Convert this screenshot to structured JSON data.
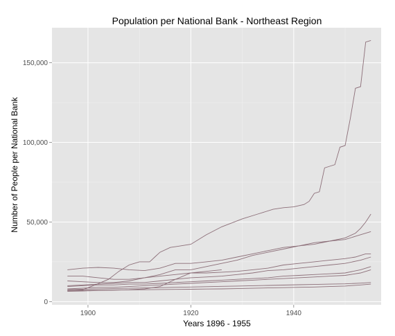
{
  "chart_data": {
    "type": "line",
    "title": "Population per National Bank - Northeast Region",
    "xlabel": "Years 1896 - 1955",
    "ylabel": "Number of People per National Bank",
    "xlim": [
      1893,
      1957
    ],
    "ylim": [
      -2000,
      172000
    ],
    "x_ticks": [
      1900,
      1920,
      1940
    ],
    "x_tick_labels": [
      "1900",
      "1920",
      "1940"
    ],
    "y_ticks": [
      0,
      50000,
      100000,
      150000
    ],
    "y_tick_labels": [
      "0",
      "50,000",
      "100,000",
      "150,000"
    ],
    "grid": true,
    "legend": "none",
    "panel_background": "#e5e5e5",
    "grid_color": "#ffffff",
    "line_color": "#8c6e78",
    "series": [
      {
        "x": [
          1896,
          1899,
          1901,
          1904,
          1906,
          1908,
          1910,
          1912,
          1913,
          1914,
          1916,
          1917,
          1918,
          1920,
          1923,
          1926,
          1930,
          1933,
          1936,
          1938,
          1940,
          1942,
          1943,
          1944,
          1945,
          1946,
          1947,
          1948,
          1949,
          1950,
          1951,
          1952,
          1953,
          1954,
          1955
        ],
        "values": [
          7000,
          7500,
          10000,
          14000,
          19000,
          23000,
          25000,
          25000,
          28000,
          31000,
          34000,
          34500,
          35000,
          36000,
          42000,
          47000,
          52000,
          55000,
          58000,
          59000,
          59500,
          61000,
          63000,
          68000,
          69000,
          84000,
          85000,
          86000,
          97000,
          98000,
          115000,
          134000,
          135000,
          163000,
          164000
        ]
      },
      {
        "x": [
          1896,
          1899,
          1902,
          1905,
          1908,
          1911,
          1914,
          1917,
          1920,
          1923,
          1926,
          1929,
          1932,
          1935,
          1938,
          1941,
          1944,
          1947,
          1950,
          1952,
          1953,
          1954,
          1955
        ],
        "values": [
          20000,
          21000,
          21500,
          21000,
          20000,
          19500,
          21000,
          24000,
          24000,
          25000,
          26000,
          28000,
          30000,
          32000,
          34000,
          35000,
          36000,
          38000,
          40000,
          43000,
          46000,
          50000,
          55000
        ]
      },
      {
        "x": [
          1896,
          1899,
          1902,
          1905,
          1908,
          1911,
          1914,
          1917,
          1920,
          1923,
          1926,
          1929,
          1932,
          1935,
          1938,
          1941,
          1944,
          1947,
          1950,
          1952,
          1955
        ],
        "values": [
          16000,
          16000,
          15000,
          14000,
          14000,
          15000,
          17000,
          20000,
          20000,
          22000,
          24000,
          26000,
          29000,
          31000,
          33000,
          35000,
          37000,
          38000,
          39000,
          41000,
          44000
        ]
      },
      {
        "x": [
          1896,
          1899,
          1902,
          1905,
          1908,
          1911,
          1914,
          1917,
          1920,
          1923,
          1926,
          1929,
          1932,
          1935,
          1938,
          1941,
          1944,
          1947,
          1950,
          1952,
          1953,
          1954,
          1955
        ],
        "values": [
          13000,
          12500,
          12000,
          12000,
          13000,
          15000,
          16000,
          17000,
          18000,
          18000,
          18500,
          19000,
          20000,
          21000,
          23000,
          24000,
          25000,
          26000,
          27000,
          28000,
          29000,
          30000,
          30000
        ]
      },
      {
        "x": [
          1896,
          1899,
          1902,
          1905,
          1908,
          1911,
          1914,
          1917,
          1920,
          1923,
          1926,
          1929,
          1932,
          1935,
          1938,
          1941,
          1944,
          1947,
          1950,
          1953,
          1955
        ],
        "values": [
          10000,
          10500,
          11000,
          11500,
          12000,
          12000,
          13000,
          14000,
          15000,
          15500,
          16000,
          17000,
          18000,
          19500,
          20000,
          21000,
          22000,
          23000,
          24000,
          26000,
          28000
        ]
      },
      {
        "x": [
          1896,
          1899,
          1902,
          1905,
          1908,
          1911,
          1914,
          1917,
          1920,
          1923,
          1926,
          1929,
          1932,
          1935,
          1938,
          1941,
          1944,
          1947,
          1950,
          1953,
          1955
        ],
        "values": [
          9500,
          10000,
          10500,
          10500,
          11000,
          11000,
          11500,
          12000,
          12500,
          13000,
          13500,
          14000,
          14500,
          15000,
          16000,
          16500,
          17000,
          17500,
          18000,
          20000,
          22000
        ]
      },
      {
        "x": [
          1896,
          1899,
          1902,
          1905,
          1908,
          1911,
          1914,
          1917,
          1920,
          1923,
          1926,
          1929,
          1932,
          1935,
          1938,
          1941,
          1944,
          1947,
          1950,
          1953,
          1955
        ],
        "values": [
          8000,
          8500,
          9000,
          9000,
          9500,
          10000,
          10500,
          11000,
          11500,
          12000,
          12500,
          13000,
          13500,
          14000,
          14500,
          15000,
          15500,
          16000,
          16500,
          18000,
          20000
        ]
      },
      {
        "x": [
          1896,
          1899,
          1902,
          1905,
          1908,
          1911,
          1914,
          1917,
          1920,
          1923,
          1926,
          1929,
          1932,
          1935,
          1938,
          1941,
          1944,
          1947,
          1950,
          1953,
          1955
        ],
        "values": [
          7500,
          7800,
          8000,
          8200,
          8400,
          8600,
          8800,
          9000,
          9200,
          9400,
          9600,
          9800,
          10000,
          10200,
          10400,
          10600,
          10800,
          11000,
          11200,
          11600,
          12000
        ]
      },
      {
        "x": [
          1896,
          1899,
          1902,
          1905,
          1908,
          1911,
          1914,
          1917,
          1920,
          1923,
          1926,
          1929,
          1932,
          1935,
          1938,
          1941,
          1944,
          1947,
          1950,
          1953,
          1955
        ],
        "values": [
          7000,
          7100,
          7200,
          7300,
          7400,
          7500,
          7600,
          7700,
          7800,
          7900,
          8000,
          8200,
          8400,
          8600,
          8800,
          9000,
          9200,
          9500,
          9800,
          10500,
          11000
        ]
      },
      {
        "x": [
          1896,
          1899,
          1902,
          1905,
          1908,
          1911,
          1914,
          1917,
          1920,
          1923,
          1926
        ],
        "values": [
          6500,
          6700,
          7000,
          7200,
          7500,
          8000,
          9500,
          14000,
          18000,
          19000,
          20000
        ]
      }
    ]
  }
}
